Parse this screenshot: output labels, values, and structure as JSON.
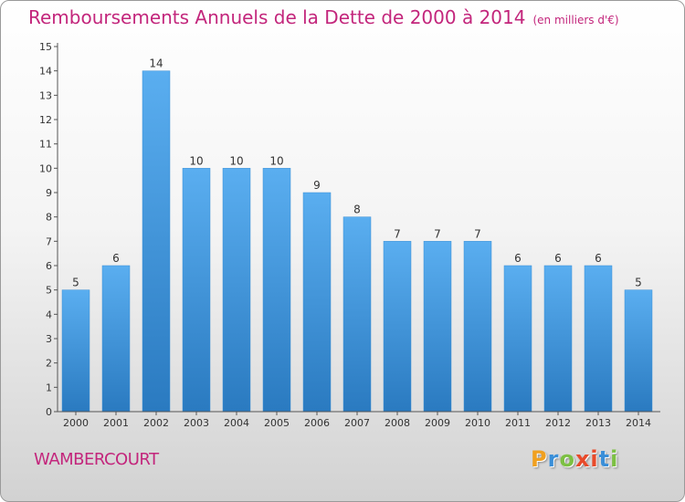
{
  "header": {
    "title": "Remboursements Annuels de la Dette de 2000 à 2014",
    "subtitle": "(en milliers d'€)"
  },
  "footer": {
    "commune": "WAMBERCOURT",
    "logo_text": "Proxiti",
    "logo_colors": [
      "#f0a020",
      "#3a8fd8",
      "#7cc043",
      "#e84a2a",
      "#e84a2a",
      "#3a8fd8",
      "#7cc043"
    ]
  },
  "colors": {
    "accent": "#c3267c",
    "bar_top": "#5aaef0",
    "bar_bottom": "#2a7ac0"
  },
  "chart_data": {
    "type": "bar",
    "categories": [
      "2000",
      "2001",
      "2002",
      "2003",
      "2004",
      "2005",
      "2006",
      "2007",
      "2008",
      "2009",
      "2010",
      "2011",
      "2012",
      "2013",
      "2014"
    ],
    "values": [
      5,
      6,
      14,
      10,
      10,
      10,
      9,
      8,
      7,
      7,
      7,
      6,
      6,
      6,
      5
    ],
    "data_labels": [
      "5",
      "6",
      "14",
      "10",
      "10",
      "10",
      "9",
      "8",
      "7",
      "7",
      "7",
      "6",
      "6",
      "6",
      "5"
    ],
    "y_ticks": [
      "0",
      "1",
      "2",
      "3",
      "4",
      "5",
      "6",
      "7",
      "8",
      "9",
      "10",
      "11",
      "12",
      "13",
      "14",
      "15"
    ],
    "ylim": [
      0,
      15
    ],
    "grid": false,
    "legend": "none"
  }
}
